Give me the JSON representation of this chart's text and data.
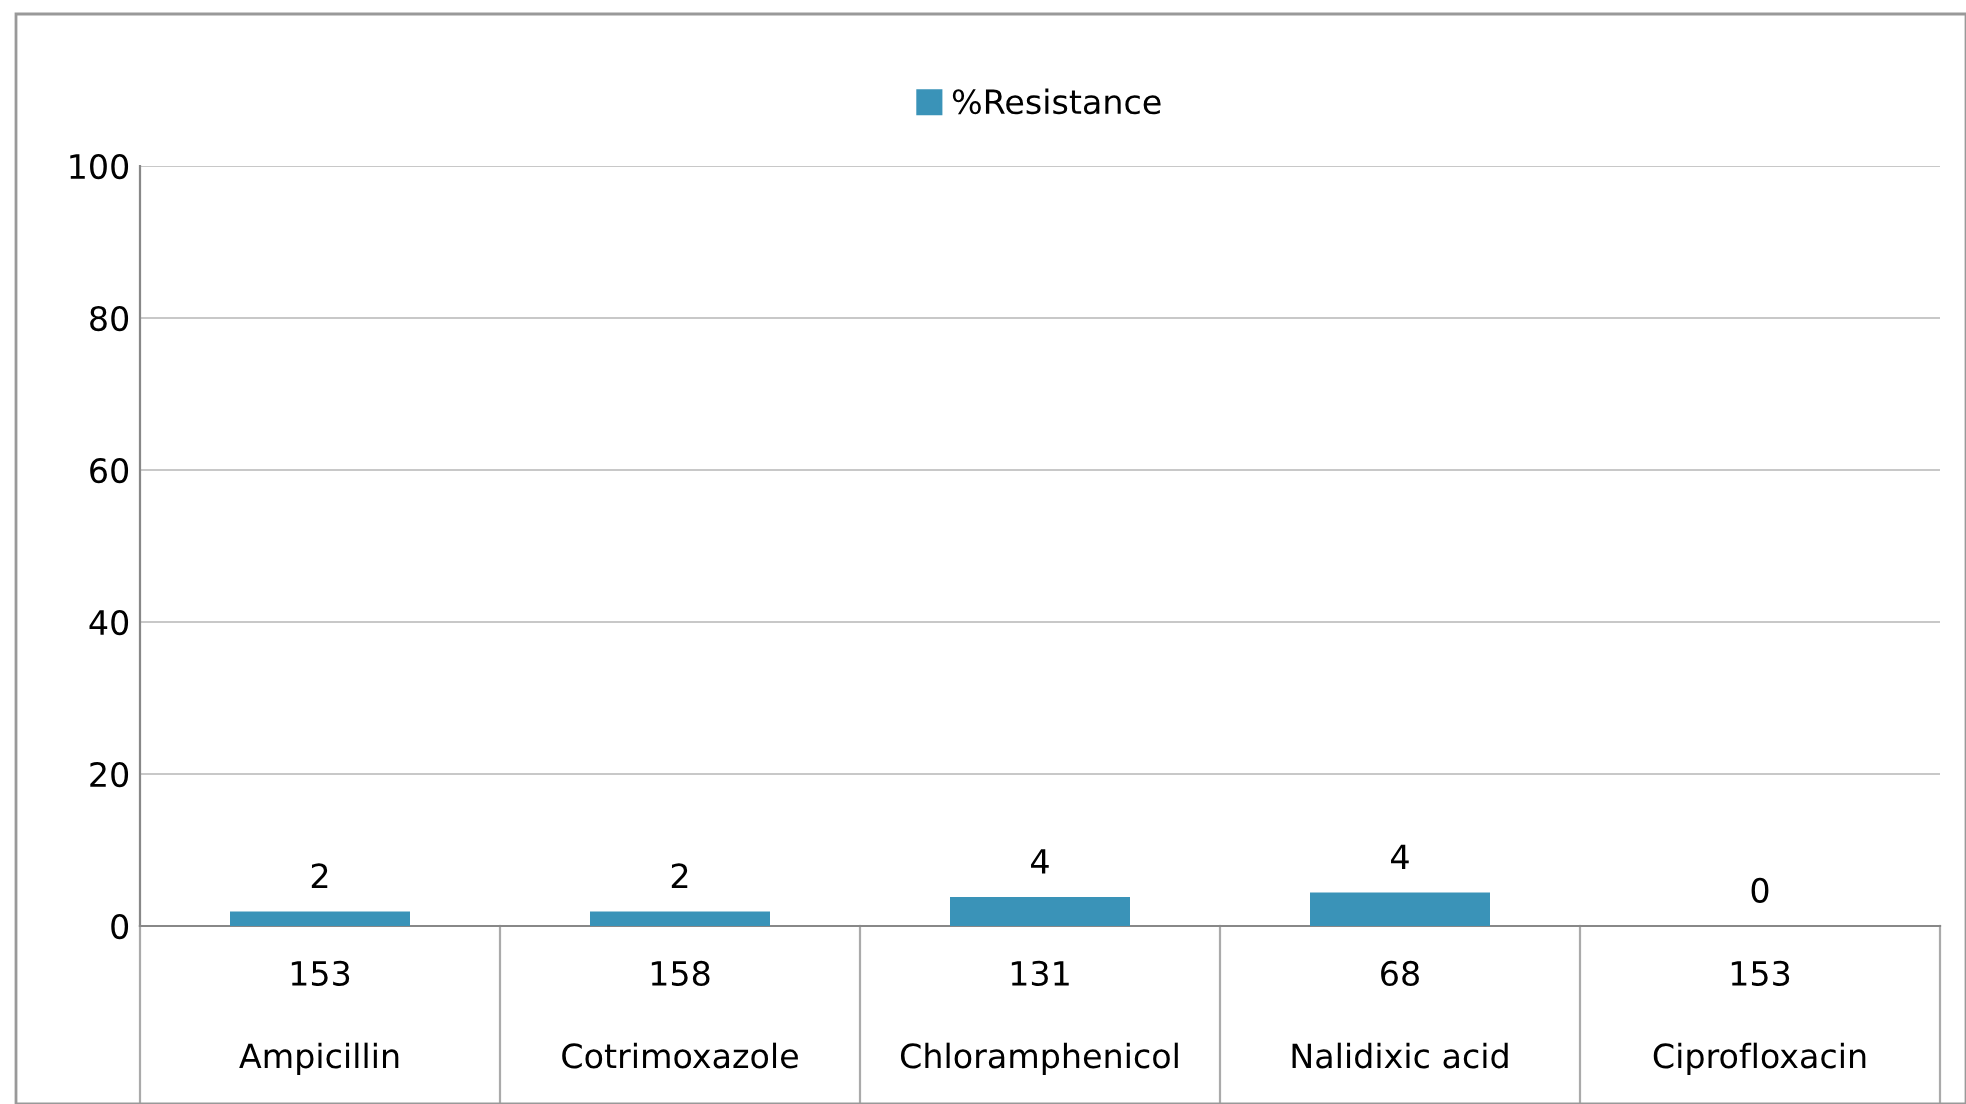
{
  "chart_data": {
    "type": "bar",
    "categories": [
      "Ampicillin",
      "Cotrimoxazole",
      "Chloramphenicol",
      "Nalidixic acid",
      "Ciprofloxacin"
    ],
    "series": [
      {
        "name": "%Resistance",
        "color": "#3a93b8",
        "values": [
          1.9,
          1.9,
          3.8,
          4.4,
          0
        ],
        "value_labels": [
          "2",
          "2",
          "4",
          "4",
          "0"
        ]
      }
    ],
    "ylim": [
      0,
      100
    ],
    "yticks": [
      0,
      20,
      40,
      60,
      80,
      100
    ],
    "grid": "y",
    "legend": "top",
    "annotations": [
      "153",
      "158",
      "131",
      "68",
      "153"
    ]
  }
}
